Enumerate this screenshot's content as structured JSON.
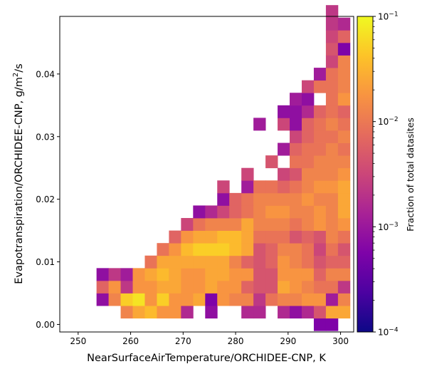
{
  "chart_data": {
    "type": "heatmap",
    "xlabel": "NearSurfaceAirTemperature/ORCHIDEE-CNP,  K",
    "ylabel_main": "Evapotranspiration/ORCHIDEE-CNP,  g/m",
    "ylabel_sup": "2",
    "ylabel_end": "/s",
    "xlim": [
      246.5,
      302.5
    ],
    "ylim": [
      -0.0012,
      0.0492
    ],
    "x_ticks": [
      250,
      260,
      270,
      280,
      290,
      300
    ],
    "x_tick_labels": [
      "250",
      "260",
      "270",
      "280",
      "290",
      "300"
    ],
    "y_ticks": [
      0.0,
      0.01,
      0.02,
      0.03,
      0.04
    ],
    "y_tick_labels": [
      "0.00",
      "0.01",
      "0.02",
      "0.03",
      "0.04"
    ],
    "bin_x0": 253.5,
    "bin_dx": 2.3,
    "bin_y0": -0.001,
    "bin_dy": 0.002,
    "colorbar": {
      "label": "Fraction of total datasites",
      "scale": "log",
      "min": 0.0001,
      "max": 0.1,
      "colormap": "plasma",
      "ticks": [
        {
          "value": 0.1,
          "base": "10",
          "exp": "−1"
        },
        {
          "value": 0.01,
          "base": "10",
          "exp": "−2"
        },
        {
          "value": 0.001,
          "base": "10",
          "exp": "−3"
        },
        {
          "value": 0.0001,
          "base": "10",
          "exp": "−4"
        }
      ]
    },
    "cells": [
      [
        18,
        0,
        2.5
      ],
      [
        19,
        0,
        2.5
      ],
      [
        2,
        1,
        7
      ],
      [
        3,
        1,
        8
      ],
      [
        4,
        1,
        8.5
      ],
      [
        5,
        1,
        7.5
      ],
      [
        6,
        1,
        7.5
      ],
      [
        7,
        1,
        4
      ],
      [
        9,
        1,
        3
      ],
      [
        12,
        1,
        4
      ],
      [
        13,
        1,
        4
      ],
      [
        15,
        1,
        4
      ],
      [
        16,
        1,
        3
      ],
      [
        17,
        1,
        4
      ],
      [
        18,
        1,
        5.5
      ],
      [
        19,
        1,
        8
      ],
      [
        20,
        1,
        8
      ],
      [
        0,
        2,
        3
      ],
      [
        1,
        2,
        7
      ],
      [
        2,
        2,
        9
      ],
      [
        3,
        2,
        9.5
      ],
      [
        4,
        2,
        7.5
      ],
      [
        5,
        2,
        9
      ],
      [
        6,
        2,
        7.5
      ],
      [
        7,
        2,
        7.5
      ],
      [
        8,
        2,
        8
      ],
      [
        9,
        2,
        2.5
      ],
      [
        10,
        2,
        7.5
      ],
      [
        11,
        2,
        7
      ],
      [
        12,
        2,
        7
      ],
      [
        13,
        2,
        4.5
      ],
      [
        14,
        2,
        6.5
      ],
      [
        15,
        2,
        7
      ],
      [
        16,
        2,
        7
      ],
      [
        17,
        2,
        7.5
      ],
      [
        18,
        2,
        7.5
      ],
      [
        19,
        2,
        3.5
      ],
      [
        20,
        2,
        7
      ],
      [
        0,
        3,
        6
      ],
      [
        1,
        3,
        7.5
      ],
      [
        2,
        3,
        4.5
      ],
      [
        3,
        3,
        7.5
      ],
      [
        4,
        3,
        7.5
      ],
      [
        5,
        3,
        8
      ],
      [
        6,
        3,
        8
      ],
      [
        7,
        3,
        7.5
      ],
      [
        8,
        3,
        7.5
      ],
      [
        9,
        3,
        8
      ],
      [
        10,
        3,
        7.5
      ],
      [
        11,
        3,
        7.5
      ],
      [
        12,
        3,
        6
      ],
      [
        13,
        3,
        5.5
      ],
      [
        14,
        3,
        5.5
      ],
      [
        15,
        3,
        8
      ],
      [
        16,
        3,
        7.5
      ],
      [
        17,
        3,
        7
      ],
      [
        18,
        3,
        6.5
      ],
      [
        19,
        3,
        6.5
      ],
      [
        20,
        3,
        4.5
      ],
      [
        0,
        4,
        3
      ],
      [
        1,
        4,
        4.5
      ],
      [
        2,
        4,
        3.5
      ],
      [
        3,
        4,
        7.5
      ],
      [
        4,
        4,
        8
      ],
      [
        5,
        4,
        8.5
      ],
      [
        6,
        4,
        8
      ],
      [
        7,
        4,
        7.5
      ],
      [
        8,
        4,
        7.5
      ],
      [
        9,
        4,
        8
      ],
      [
        10,
        4,
        8
      ],
      [
        11,
        4,
        7.5
      ],
      [
        12,
        4,
        7.5
      ],
      [
        13,
        4,
        5.5
      ],
      [
        14,
        4,
        5.5
      ],
      [
        15,
        4,
        7.5
      ],
      [
        16,
        4,
        7.5
      ],
      [
        17,
        4,
        7.5
      ],
      [
        18,
        4,
        6
      ],
      [
        19,
        4,
        7
      ],
      [
        20,
        4,
        7
      ],
      [
        4,
        5,
        6.5
      ],
      [
        5,
        5,
        8
      ],
      [
        6,
        5,
        8
      ],
      [
        7,
        5,
        8
      ],
      [
        8,
        5,
        8
      ],
      [
        9,
        5,
        8
      ],
      [
        10,
        5,
        8
      ],
      [
        11,
        5,
        7
      ],
      [
        12,
        5,
        6
      ],
      [
        13,
        5,
        5.5
      ],
      [
        14,
        5,
        6
      ],
      [
        15,
        5,
        7.5
      ],
      [
        16,
        5,
        7
      ],
      [
        17,
        5,
        6.5
      ],
      [
        18,
        5,
        5.5
      ],
      [
        19,
        5,
        6
      ],
      [
        20,
        5,
        6
      ],
      [
        5,
        6,
        6.5
      ],
      [
        6,
        6,
        7.5
      ],
      [
        7,
        6,
        8.5
      ],
      [
        8,
        6,
        9
      ],
      [
        9,
        6,
        9
      ],
      [
        10,
        6,
        9
      ],
      [
        11,
        6,
        8.5
      ],
      [
        12,
        6,
        8
      ],
      [
        13,
        6,
        5.5
      ],
      [
        14,
        6,
        6
      ],
      [
        15,
        6,
        7
      ],
      [
        16,
        6,
        7
      ],
      [
        17,
        6,
        6.5
      ],
      [
        18,
        6,
        5
      ],
      [
        19,
        6,
        6.5
      ],
      [
        20,
        6,
        5.5
      ],
      [
        6,
        7,
        6
      ],
      [
        7,
        7,
        7.5
      ],
      [
        8,
        7,
        8
      ],
      [
        9,
        7,
        8
      ],
      [
        10,
        7,
        8.5
      ],
      [
        11,
        7,
        8.5
      ],
      [
        12,
        7,
        8
      ],
      [
        13,
        7,
        6.5
      ],
      [
        14,
        7,
        6.5
      ],
      [
        15,
        7,
        6.5
      ],
      [
        16,
        7,
        5.5
      ],
      [
        17,
        7,
        6
      ],
      [
        18,
        7,
        5.5
      ],
      [
        19,
        7,
        7
      ],
      [
        20,
        7,
        6.5
      ],
      [
        7,
        8,
        5
      ],
      [
        8,
        8,
        6.5
      ],
      [
        9,
        8,
        7
      ],
      [
        10,
        8,
        7
      ],
      [
        11,
        8,
        7
      ],
      [
        12,
        8,
        8
      ],
      [
        13,
        8,
        7
      ],
      [
        14,
        8,
        7
      ],
      [
        15,
        8,
        7
      ],
      [
        16,
        8,
        6.5
      ],
      [
        17,
        8,
        7
      ],
      [
        18,
        8,
        7.5
      ],
      [
        19,
        8,
        7
      ],
      [
        20,
        8,
        7.5
      ],
      [
        8,
        9,
        3
      ],
      [
        9,
        9,
        4
      ],
      [
        10,
        9,
        5
      ],
      [
        11,
        9,
        6
      ],
      [
        12,
        9,
        6.5
      ],
      [
        13,
        9,
        7
      ],
      [
        14,
        9,
        7.5
      ],
      [
        15,
        9,
        7.5
      ],
      [
        16,
        9,
        7
      ],
      [
        17,
        9,
        7
      ],
      [
        18,
        9,
        7.5
      ],
      [
        19,
        9,
        7
      ],
      [
        20,
        9,
        8
      ],
      [
        10,
        10,
        3
      ],
      [
        11,
        10,
        6
      ],
      [
        12,
        10,
        6.5
      ],
      [
        13,
        10,
        7
      ],
      [
        14,
        10,
        7
      ],
      [
        15,
        10,
        7
      ],
      [
        16,
        10,
        7
      ],
      [
        17,
        10,
        7.5
      ],
      [
        18,
        10,
        7
      ],
      [
        19,
        10,
        7
      ],
      [
        20,
        10,
        8
      ],
      [
        10,
        11,
        5
      ],
      [
        12,
        11,
        3.5
      ],
      [
        13,
        11,
        6.5
      ],
      [
        14,
        11,
        6.5
      ],
      [
        15,
        11,
        6
      ],
      [
        16,
        11,
        6.5
      ],
      [
        17,
        11,
        7
      ],
      [
        18,
        11,
        7.5
      ],
      [
        19,
        11,
        7.5
      ],
      [
        20,
        11,
        8
      ],
      [
        12,
        12,
        5
      ],
      [
        15,
        12,
        5
      ],
      [
        16,
        12,
        5.5
      ],
      [
        17,
        12,
        7
      ],
      [
        18,
        12,
        7
      ],
      [
        19,
        12,
        7
      ],
      [
        20,
        12,
        7.5
      ],
      [
        14,
        13,
        5.5
      ],
      [
        16,
        13,
        6.5
      ],
      [
        17,
        13,
        6.5
      ],
      [
        18,
        13,
        7
      ],
      [
        19,
        13,
        7
      ],
      [
        20,
        13,
        7
      ],
      [
        15,
        14,
        3.5
      ],
      [
        16,
        14,
        6
      ],
      [
        17,
        14,
        6.5
      ],
      [
        18,
        14,
        6.5
      ],
      [
        19,
        14,
        7
      ],
      [
        20,
        14,
        6.5
      ],
      [
        16,
        15,
        5
      ],
      [
        17,
        15,
        6
      ],
      [
        18,
        15,
        6.5
      ],
      [
        19,
        15,
        6.5
      ],
      [
        20,
        15,
        7
      ],
      [
        13,
        16,
        3.5
      ],
      [
        15,
        16,
        5
      ],
      [
        16,
        16,
        3
      ],
      [
        17,
        16,
        6
      ],
      [
        18,
        16,
        6.5
      ],
      [
        19,
        16,
        7
      ],
      [
        20,
        16,
        6.5
      ],
      [
        15,
        17,
        3
      ],
      [
        16,
        17,
        3
      ],
      [
        17,
        17,
        4
      ],
      [
        18,
        17,
        6
      ],
      [
        19,
        17,
        6.5
      ],
      [
        20,
        17,
        6
      ],
      [
        16,
        18,
        3.5
      ],
      [
        17,
        18,
        3
      ],
      [
        19,
        18,
        6.5
      ],
      [
        20,
        18,
        7.5
      ],
      [
        17,
        19,
        5
      ],
      [
        18,
        19,
        6.5
      ],
      [
        19,
        19,
        6.5
      ],
      [
        20,
        19,
        7
      ],
      [
        18,
        20,
        3.5
      ],
      [
        19,
        20,
        6.5
      ],
      [
        20,
        20,
        7
      ],
      [
        19,
        21,
        5
      ],
      [
        20,
        21,
        7
      ],
      [
        19,
        22,
        5.5
      ],
      [
        20,
        22,
        2.5
      ],
      [
        19,
        23,
        5
      ],
      [
        20,
        23,
        6
      ],
      [
        19,
        24,
        4.5
      ],
      [
        20,
        24,
        4
      ],
      [
        19,
        25,
        4.5
      ]
    ]
  }
}
